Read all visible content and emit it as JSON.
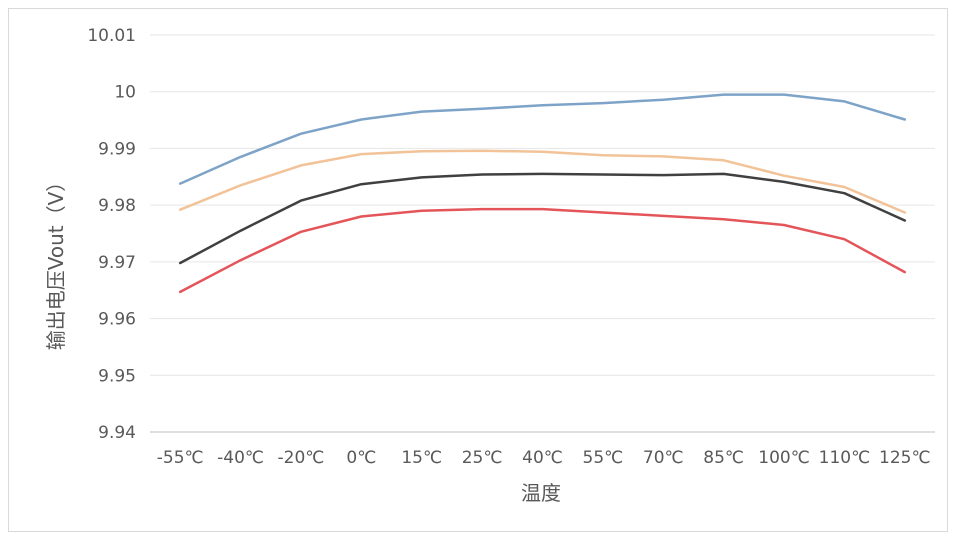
{
  "chart_data": {
    "type": "line",
    "title": "",
    "xlabel": "温度",
    "ylabel": "输出电压Vout（V）",
    "categories": [
      "-55℃",
      "-40℃",
      "-20℃",
      "0℃",
      "15℃",
      "25℃",
      "40℃",
      "55℃",
      "70℃",
      "85℃",
      "100℃",
      "110℃",
      "125℃"
    ],
    "y_ticks": [
      "9.94",
      "9.95",
      "9.96",
      "9.97",
      "9.98",
      "9.99",
      "10",
      "10.01"
    ],
    "ylim": [
      9.94,
      10.01
    ],
    "grid": true,
    "legend": "none",
    "series": [
      {
        "color": "#7ea3c8",
        "values": [
          9.9838,
          9.9885,
          9.9926,
          9.9951,
          9.9965,
          9.997,
          9.9976,
          9.998,
          9.9986,
          9.9995,
          9.9995,
          9.9983,
          9.9951
        ]
      },
      {
        "color": "#f2c398",
        "values": [
          9.9792,
          9.9835,
          9.987,
          9.989,
          9.9895,
          9.9896,
          9.9894,
          9.9888,
          9.9886,
          9.9879,
          9.9852,
          9.9832,
          9.9787
        ]
      },
      {
        "color": "#404040",
        "values": [
          9.9698,
          9.9755,
          9.9808,
          9.9837,
          9.9849,
          9.9854,
          9.9855,
          9.9854,
          9.9853,
          9.9855,
          9.9841,
          9.9821,
          9.9773
        ]
      },
      {
        "color": "#e4555a",
        "values": [
          9.9647,
          9.9703,
          9.9753,
          9.978,
          9.979,
          9.9793,
          9.9793,
          9.9787,
          9.9781,
          9.9775,
          9.9765,
          9.974,
          9.9682
        ]
      }
    ]
  }
}
